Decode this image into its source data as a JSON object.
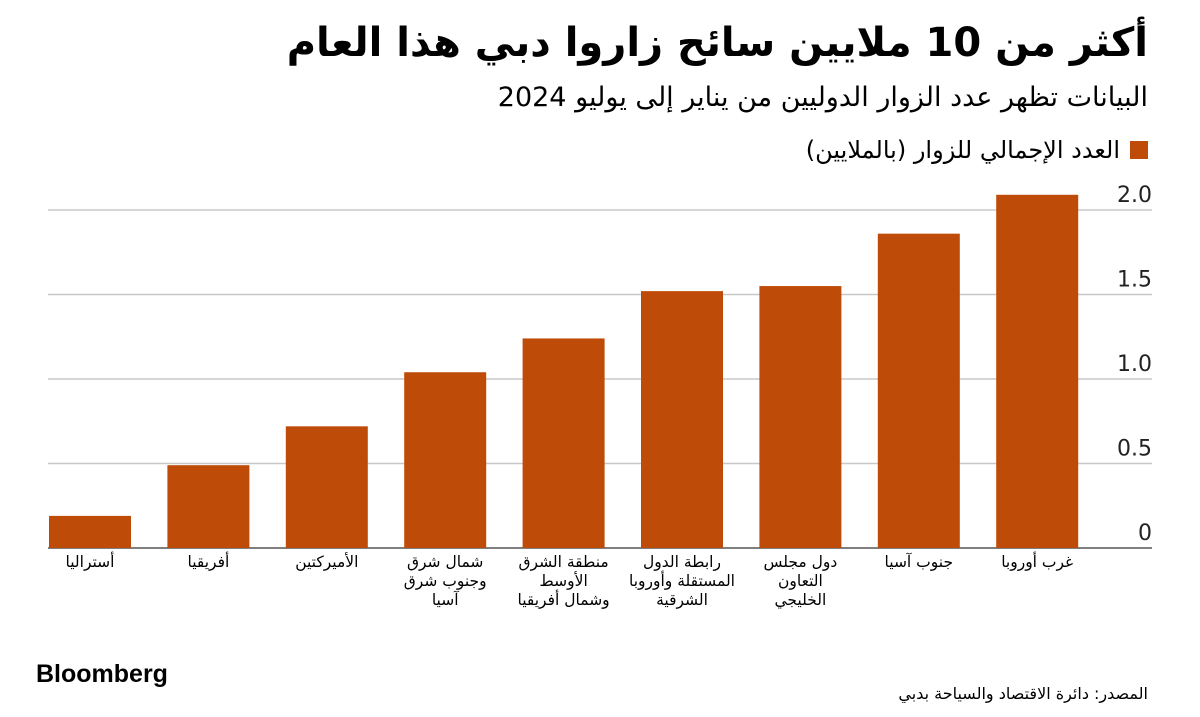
{
  "header": {
    "title": "أكثر من 10 ملايين سائح زاروا دبي هذا العام",
    "subtitle": "البيانات تظهر عدد الزوار الدوليين من يناير إلى يوليو 2024"
  },
  "footer": {
    "brand": "Bloomberg",
    "source": "المصدر: دائرة الاقتصاد والسياحة بدبي"
  },
  "chart_data": {
    "type": "bar",
    "legend_position": "top-right",
    "grid": true,
    "bar_color": "#bf4b08",
    "grid_color": "#c8c8c8",
    "categories": [
      "أستراليا",
      "أفريقيا",
      "الأميركتين",
      "شمال شرق وجنوب شرق آسيا",
      "منطقة الشرق الأوسط وشمال أفريقيا",
      "رابطة الدول المستقلة وأوروبا الشرقية",
      "دول مجلس التعاون الخليجي",
      "جنوب آسيا",
      "غرب أوروبا"
    ],
    "category_lines": [
      [
        "أستراليا"
      ],
      [
        "أفريقيا"
      ],
      [
        "الأميركتين"
      ],
      [
        "شمال شرق",
        "وجنوب شرق",
        "آسيا"
      ],
      [
        "منطقة الشرق",
        "الأوسط",
        "وشمال أفريقيا"
      ],
      [
        "رابطة الدول",
        "المستقلة وأوروبا",
        "الشرقية"
      ],
      [
        "دول مجلس",
        "التعاون",
        "الخليجي"
      ],
      [
        "جنوب آسيا"
      ],
      [
        "غرب أوروبا"
      ]
    ],
    "series": [
      {
        "name": "العدد الإجمالي للزوار (بالملايين)",
        "values": [
          0.19,
          0.49,
          0.72,
          1.04,
          1.24,
          1.52,
          1.55,
          1.86,
          2.09
        ]
      }
    ],
    "ylim": [
      0,
      2.0
    ],
    "yticks": [
      0,
      0.5,
      1.0,
      1.5,
      2.0
    ],
    "ytick_labels": [
      "0",
      "0.5",
      "1.0",
      "1.5",
      "2.0"
    ]
  }
}
